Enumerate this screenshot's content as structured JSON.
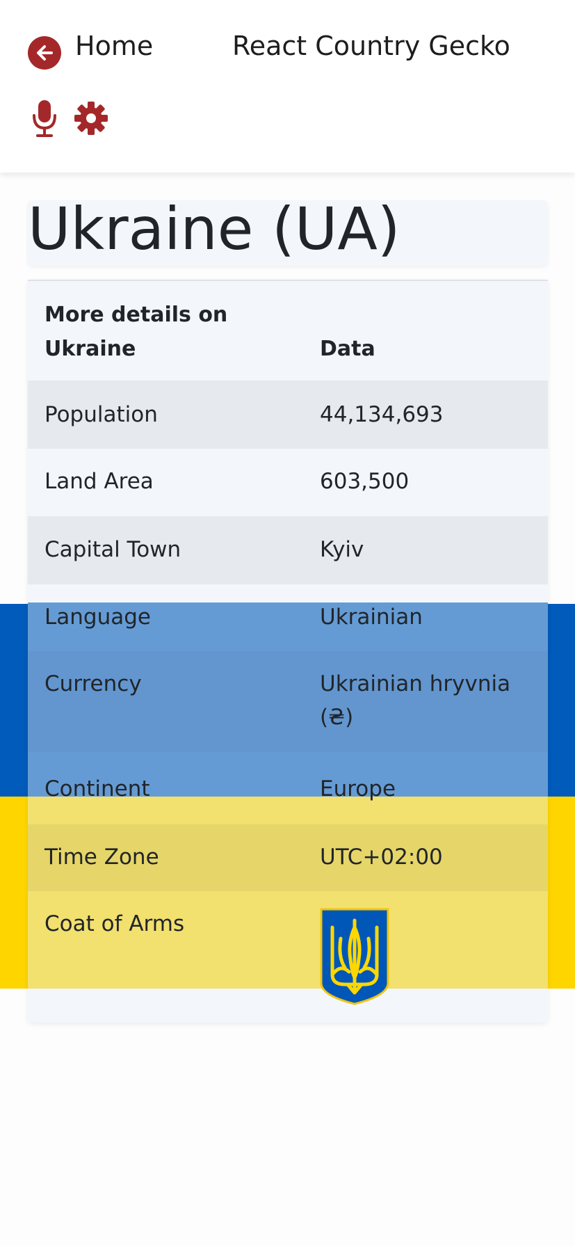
{
  "header": {
    "home_label": "Home",
    "app_title": "React Country Gecko",
    "icons": [
      "arrow-left-icon",
      "microphone-icon",
      "gear-icon"
    ],
    "accent_color": "#a4282a"
  },
  "country": {
    "title": "Ukraine (UA)",
    "flag_colors": [
      "#005bbb",
      "#ffd500"
    ]
  },
  "table": {
    "headers": [
      "More details on Ukraine",
      "Data"
    ],
    "rows": [
      {
        "label": "Population",
        "value": "44,134,693"
      },
      {
        "label": "Land Area",
        "value": "603,500"
      },
      {
        "label": "Capital Town",
        "value": "Kyiv"
      },
      {
        "label": "Language",
        "value": "Ukrainian"
      },
      {
        "label": "Currency",
        "value": "Ukrainian hryvnia (₴)"
      },
      {
        "label": "Continent",
        "value": "Europe"
      },
      {
        "label": "Time Zone",
        "value": "UTC+02:00"
      },
      {
        "label": "Coat of Arms",
        "value": ""
      }
    ]
  }
}
